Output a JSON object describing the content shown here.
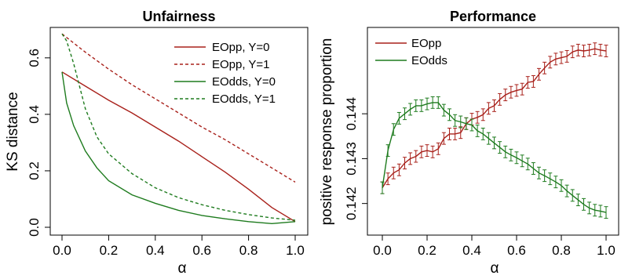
{
  "colors": {
    "red": "#a8201a",
    "green": "#1e7b1e"
  },
  "chart_data": [
    {
      "type": "line",
      "title": "Unfairness",
      "xlabel": "α",
      "ylabel": "KS distance",
      "xlim": [
        0,
        1
      ],
      "ylim": [
        0,
        0.68
      ],
      "x_ticks": [
        "0.0",
        "0.2",
        "0.4",
        "0.6",
        "0.8",
        "1.0"
      ],
      "y_ticks": [
        "0.0",
        "0.2",
        "0.4",
        "0.6"
      ],
      "legend_position": "top-right",
      "series": [
        {
          "name": "EOpp, Y=0",
          "color": "red",
          "style": "solid",
          "x": [
            0,
            0.1,
            0.2,
            0.3,
            0.4,
            0.5,
            0.6,
            0.7,
            0.8,
            0.9,
            1.0
          ],
          "y": [
            0.55,
            0.5,
            0.45,
            0.405,
            0.355,
            0.305,
            0.25,
            0.195,
            0.135,
            0.07,
            0.02
          ]
        },
        {
          "name": "EOpp, Y=1",
          "color": "red",
          "style": "dashed",
          "x": [
            0,
            0.1,
            0.2,
            0.3,
            0.4,
            0.5,
            0.6,
            0.7,
            0.8,
            0.9,
            1.0
          ],
          "y": [
            0.685,
            0.62,
            0.56,
            0.505,
            0.455,
            0.405,
            0.355,
            0.31,
            0.26,
            0.21,
            0.16
          ]
        },
        {
          "name": "EOdds, Y=0",
          "color": "green",
          "style": "solid",
          "x": [
            0,
            0.02,
            0.05,
            0.1,
            0.15,
            0.2,
            0.3,
            0.4,
            0.5,
            0.6,
            0.7,
            0.8,
            0.9,
            1.0
          ],
          "y": [
            0.55,
            0.44,
            0.36,
            0.27,
            0.21,
            0.165,
            0.115,
            0.085,
            0.06,
            0.042,
            0.03,
            0.02,
            0.013,
            0.02
          ]
        },
        {
          "name": "EOdds, Y=1",
          "color": "green",
          "style": "dashed",
          "x": [
            0,
            0.02,
            0.05,
            0.1,
            0.15,
            0.2,
            0.3,
            0.4,
            0.5,
            0.6,
            0.7,
            0.8,
            0.9,
            1.0
          ],
          "y": [
            0.685,
            0.66,
            0.58,
            0.42,
            0.32,
            0.26,
            0.19,
            0.14,
            0.105,
            0.08,
            0.06,
            0.045,
            0.033,
            0.025
          ]
        }
      ]
    },
    {
      "type": "line",
      "title": "Performance",
      "xlabel": "α",
      "ylabel": "positive response proportion",
      "xlim": [
        0,
        1
      ],
      "ylim": [
        0.14147,
        0.14575
      ],
      "x_ticks": [
        "0.0",
        "0.2",
        "0.4",
        "0.6",
        "0.8",
        "1.0"
      ],
      "y_ticks": [
        "0.142",
        "0.143",
        "0.144"
      ],
      "y_tick_values": [
        0.142,
        0.143,
        0.144
      ],
      "legend_position": "top-left",
      "error_bars": true,
      "series": [
        {
          "name": "EOpp",
          "color": "red",
          "style": "solid",
          "x": [
            0,
            0.025,
            0.05,
            0.075,
            0.1,
            0.125,
            0.15,
            0.175,
            0.2,
            0.225,
            0.25,
            0.275,
            0.3,
            0.325,
            0.35,
            0.375,
            0.4,
            0.425,
            0.45,
            0.475,
            0.5,
            0.525,
            0.55,
            0.575,
            0.6,
            0.625,
            0.65,
            0.675,
            0.7,
            0.725,
            0.75,
            0.775,
            0.8,
            0.825,
            0.85,
            0.875,
            0.9,
            0.925,
            0.95,
            0.975,
            1.0
          ],
          "y": [
            0.14235,
            0.14255,
            0.14268,
            0.14275,
            0.1429,
            0.143,
            0.14305,
            0.14315,
            0.14318,
            0.14315,
            0.14322,
            0.14345,
            0.14355,
            0.14355,
            0.14358,
            0.14378,
            0.14388,
            0.14392,
            0.14398,
            0.14412,
            0.14418,
            0.14432,
            0.14442,
            0.14448,
            0.14452,
            0.14455,
            0.1447,
            0.14472,
            0.14488,
            0.14502,
            0.14515,
            0.14522,
            0.14525,
            0.14528,
            0.14538,
            0.14542,
            0.1454,
            0.14542,
            0.14545,
            0.14542,
            0.1454
          ],
          "err": 0.00013
        },
        {
          "name": "EOdds",
          "color": "green",
          "style": "solid",
          "x": [
            0,
            0.025,
            0.05,
            0.075,
            0.1,
            0.125,
            0.15,
            0.175,
            0.2,
            0.225,
            0.25,
            0.275,
            0.3,
            0.325,
            0.35,
            0.375,
            0.4,
            0.425,
            0.45,
            0.475,
            0.5,
            0.525,
            0.55,
            0.575,
            0.6,
            0.625,
            0.65,
            0.675,
            0.7,
            0.725,
            0.75,
            0.775,
            0.8,
            0.825,
            0.85,
            0.875,
            0.9,
            0.925,
            0.95,
            0.975,
            1.0
          ],
          "y": [
            0.14235,
            0.14318,
            0.14365,
            0.1439,
            0.144,
            0.1441,
            0.14418,
            0.14418,
            0.14422,
            0.14425,
            0.14425,
            0.14408,
            0.14398,
            0.14385,
            0.14382,
            0.14378,
            0.14375,
            0.14362,
            0.14355,
            0.14345,
            0.14335,
            0.14325,
            0.14315,
            0.14308,
            0.14302,
            0.14295,
            0.14288,
            0.14278,
            0.14268,
            0.14262,
            0.14255,
            0.14248,
            0.1424,
            0.14228,
            0.14218,
            0.14208,
            0.14198,
            0.1419,
            0.14185,
            0.14183,
            0.1418
          ],
          "err": 0.00013
        }
      ]
    }
  ]
}
